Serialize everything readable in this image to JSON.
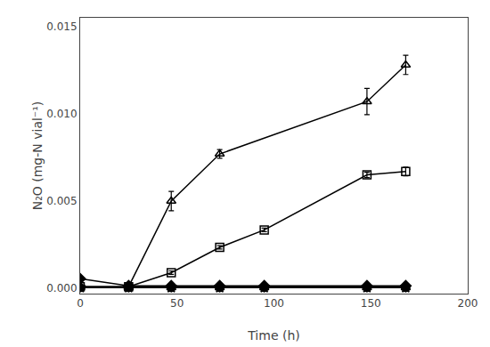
{
  "chart_data": {
    "type": "line",
    "xlabel": "Time (h)",
    "ylabel": "N₂O (mg-N vial⁻¹)",
    "xlim": [
      0,
      200
    ],
    "ylim": [
      -0.0003,
      0.0155
    ],
    "xticks": [
      0,
      50,
      100,
      150,
      200
    ],
    "yticks": [
      {
        "value": 0.0,
        "label": "0.000"
      },
      0.005,
      {
        "value": 0.01,
        "label": "0.010"
      },
      0.015
    ],
    "grid": false,
    "series": [
      {
        "x": [
          0,
          25,
          47,
          72,
          148,
          168
        ],
        "values": [
          0.0001,
          0.0001,
          0.005,
          0.0077,
          0.0107,
          0.0128
        ],
        "yerr": [
          5e-05,
          5e-05,
          0.00055,
          0.00025,
          0.00075,
          0.00055
        ],
        "marker": "triangle-up-open",
        "color": "#000000"
      },
      {
        "x": [
          0,
          25,
          47,
          72,
          95,
          148,
          168
        ],
        "values": [
          0.0001,
          0.0001,
          0.0009,
          0.00235,
          0.00335,
          0.0065,
          0.0067
        ],
        "yerr": [
          5e-05,
          5e-05,
          0.0001,
          0.0001,
          0.0001,
          0.00015,
          0.00025
        ],
        "marker": "square-open",
        "color": "#000000"
      },
      {
        "x": [
          0,
          25,
          47,
          72,
          95,
          148,
          168
        ],
        "values": [
          0.00055,
          0.00015,
          0.00015,
          0.00015,
          0.00015,
          0.00015,
          0.00015
        ],
        "yerr": [
          8e-05,
          3e-05,
          3e-05,
          3e-05,
          3e-05,
          3e-05,
          3e-05
        ],
        "marker": "diamond",
        "color": "#000000"
      },
      {
        "x": [
          0,
          25,
          47,
          72,
          95,
          148,
          168
        ],
        "values": [
          5e-05,
          5e-05,
          5e-05,
          5e-05,
          5e-05,
          5e-05,
          5e-05
        ],
        "yerr": [
          2e-05,
          2e-05,
          2e-05,
          2e-05,
          2e-05,
          2e-05,
          2e-05
        ],
        "marker": "triangle-up",
        "color": "#000000"
      },
      {
        "x": [
          0,
          25,
          47,
          72,
          95,
          148,
          168
        ],
        "values": [
          5e-05,
          5e-05,
          5e-05,
          5e-05,
          5e-05,
          5e-05,
          5e-05
        ],
        "yerr": [
          2e-05,
          2e-05,
          2e-05,
          2e-05,
          2e-05,
          2e-05,
          2e-05
        ],
        "marker": "star",
        "color": "#000000"
      },
      {
        "x": [
          0,
          25,
          47,
          72,
          95,
          148,
          168
        ],
        "values": [
          5e-05,
          5e-05,
          5e-05,
          5e-05,
          5e-05,
          5e-05,
          5e-05
        ],
        "yerr": [
          2e-05,
          2e-05,
          2e-05,
          2e-05,
          2e-05,
          2e-05,
          2e-05
        ],
        "marker": "triangle-down",
        "color": "#000000"
      },
      {
        "x": [
          0,
          25,
          47,
          72,
          95,
          148,
          168
        ],
        "values": [
          5e-05,
          5e-05,
          5e-05,
          5e-05,
          5e-05,
          5e-05,
          5e-05
        ],
        "yerr": [
          2e-05,
          2e-05,
          2e-05,
          2e-05,
          2e-05,
          2e-05,
          2e-05
        ],
        "marker": "circle",
        "color": "#000000"
      }
    ]
  }
}
